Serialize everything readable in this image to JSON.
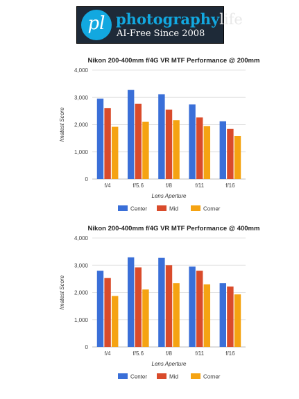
{
  "logo": {
    "monogram": "pl",
    "brand_part1": "photography",
    "brand_part2": "life",
    "tagline": "AI-Free Since 2008"
  },
  "colors": {
    "Center": "#3a6fd8",
    "Mid": "#d94b2b",
    "Corner": "#f5a312"
  },
  "chart_data": [
    {
      "type": "bar",
      "title": "Nikon 200-400mm f/4G VR MTF Performance @ 200mm",
      "xlabel": "Lens Aperture",
      "ylabel": "Imatest Score",
      "ylim": [
        0,
        4000
      ],
      "yticks": [
        0,
        1000,
        2000,
        3000,
        4000
      ],
      "ytick_labels": [
        "0",
        "1,000",
        "2,000",
        "3,000",
        "4,000"
      ],
      "categories": [
        "f/4",
        "f/5.6",
        "f/8",
        "f/11",
        "f/16"
      ],
      "grid": true,
      "legend_position": "bottom",
      "series": [
        {
          "name": "Center",
          "values": [
            2950,
            3270,
            3110,
            2740,
            2120
          ]
        },
        {
          "name": "Mid",
          "values": [
            2600,
            2760,
            2550,
            2260,
            1840
          ]
        },
        {
          "name": "Corner",
          "values": [
            1920,
            2100,
            2160,
            1940,
            1580
          ]
        }
      ]
    },
    {
      "type": "bar",
      "title": "Nikon 200-400mm f/4G VR MTF Performance @ 400mm",
      "xlabel": "Lens Aperture",
      "ylabel": "Imatest Score",
      "ylim": [
        0,
        4000
      ],
      "yticks": [
        0,
        1000,
        2000,
        3000,
        4000
      ],
      "ytick_labels": [
        "0",
        "1,000",
        "2,000",
        "3,000",
        "4,000"
      ],
      "categories": [
        "f/4",
        "f/5.6",
        "f/8",
        "f/11",
        "f/16"
      ],
      "grid": true,
      "legend_position": "bottom",
      "series": [
        {
          "name": "Center",
          "values": [
            2800,
            3290,
            3270,
            2950,
            2340
          ]
        },
        {
          "name": "Mid",
          "values": [
            2530,
            2920,
            3000,
            2800,
            2220
          ]
        },
        {
          "name": "Corner",
          "values": [
            1870,
            2110,
            2340,
            2300,
            1930
          ]
        }
      ]
    }
  ]
}
